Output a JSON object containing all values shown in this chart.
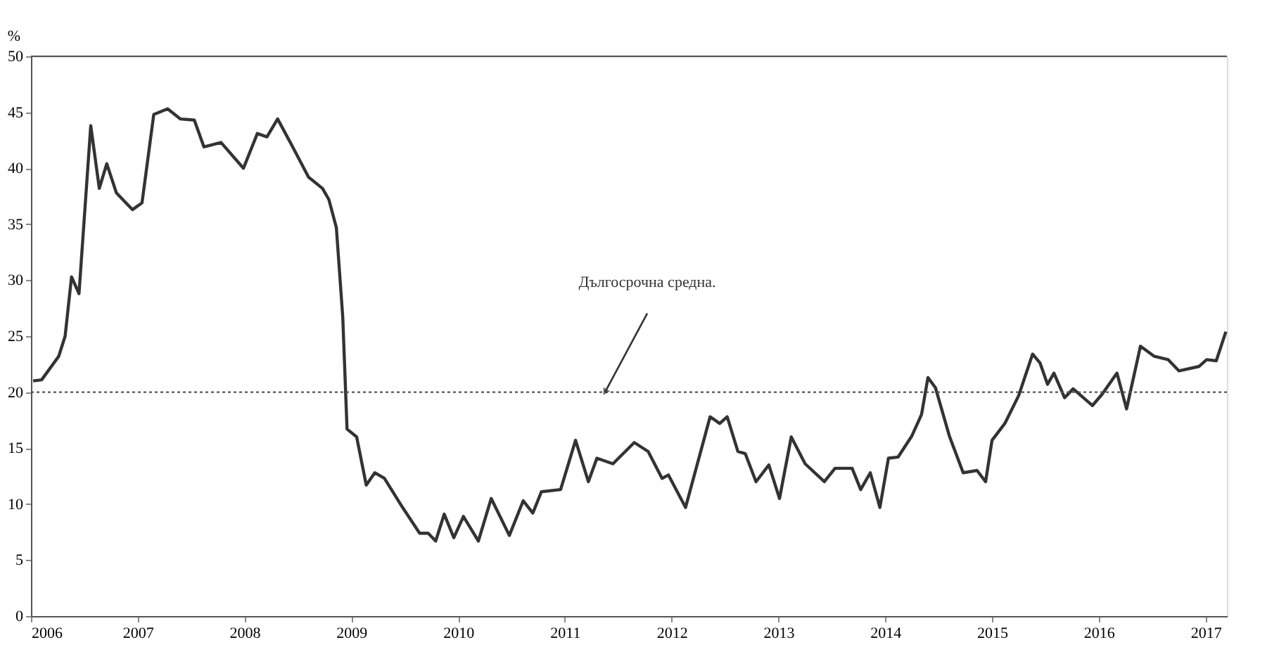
{
  "chart_data": {
    "type": "line",
    "ylabel": "%",
    "x": [
      2006.02,
      2006.1,
      2006.26,
      2006.32,
      2006.38,
      2006.45,
      2006.56,
      2006.64,
      2006.71,
      2006.8,
      2006.95,
      2007.04,
      2007.15,
      2007.28,
      2007.4,
      2007.53,
      2007.62,
      2007.78,
      2007.99,
      2008.12,
      2008.21,
      2008.31,
      2008.44,
      2008.6,
      2008.73,
      2008.79,
      2008.86,
      2008.92,
      2008.96,
      2009.05,
      2009.14,
      2009.22,
      2009.31,
      2009.48,
      2009.64,
      2009.72,
      2009.79,
      2009.87,
      2009.96,
      2010.05,
      2010.19,
      2010.31,
      2010.48,
      2010.61,
      2010.7,
      2010.78,
      2010.96,
      2011.1,
      2011.22,
      2011.3,
      2011.45,
      2011.65,
      2011.78,
      2011.91,
      2011.97,
      2012.13,
      2012.36,
      2012.45,
      2012.52,
      2012.62,
      2012.69,
      2012.79,
      2012.91,
      2013.01,
      2013.12,
      2013.25,
      2013.43,
      2013.53,
      2013.69,
      2013.77,
      2013.86,
      2013.95,
      2014.03,
      2014.12,
      2014.25,
      2014.34,
      2014.4,
      2014.47,
      2014.6,
      2014.73,
      2014.86,
      2014.94,
      2015.0,
      2015.12,
      2015.25,
      2015.38,
      2015.45,
      2015.52,
      2015.58,
      2015.68,
      2015.76,
      2015.94,
      2016.03,
      2016.17,
      2016.26,
      2016.39,
      2016.52,
      2016.65,
      2016.75,
      2016.94,
      2017.01,
      2017.1,
      2017.19
    ],
    "series": [
      {
        "color": "#333333",
        "values": [
          21,
          21.1,
          23.2,
          25,
          30.3,
          28.8,
          43.8,
          38.2,
          40.4,
          37.8,
          36.3,
          36.9,
          44.8,
          45.3,
          44.4,
          44.3,
          41.9,
          42.3,
          40,
          43.1,
          42.8,
          44.4,
          42.1,
          39.2,
          38.2,
          37.2,
          34.7,
          26.7,
          16.7,
          16,
          11.7,
          12.8,
          12.3,
          9.7,
          7.4,
          7.4,
          6.7,
          9.1,
          7,
          8.9,
          6.7,
          10.5,
          7.2,
          10.3,
          9.2,
          11.1,
          11.3,
          15.7,
          12,
          14.1,
          13.6,
          15.5,
          14.7,
          12.3,
          12.6,
          9.7,
          17.8,
          17.2,
          17.8,
          14.7,
          14.5,
          12,
          13.5,
          10.5,
          16,
          13.6,
          12,
          13.2,
          13.2,
          11.3,
          12.8,
          9.7,
          14.1,
          14.2,
          16.1,
          18,
          21.3,
          20.4,
          16.1,
          12.8,
          13,
          12,
          15.7,
          17.2,
          19.7,
          23.4,
          22.6,
          20.7,
          21.7,
          19.5,
          20.3,
          18.8,
          19.8,
          21.7,
          18.5,
          24.1,
          23.2,
          22.9,
          21.9,
          22.3,
          22.9,
          22.8,
          25.4
        ]
      }
    ],
    "xlim": [
      2006,
      2017.2
    ],
    "xticks": [
      2006,
      2007,
      2008,
      2009,
      2010,
      2011,
      2012,
      2013,
      2014,
      2015,
      2016,
      2017
    ],
    "ylim": [
      0,
      50
    ],
    "yticks": [
      0,
      5,
      10,
      15,
      20,
      25,
      30,
      35,
      40,
      45,
      50
    ],
    "ref_lines": [
      {
        "axis": "y",
        "value": 20,
        "color": "#555555",
        "line_style": "dotted",
        "label": "Дългосрочна средна."
      }
    ],
    "grid": false,
    "legend": false,
    "marker": "none",
    "line_style": "solid"
  }
}
